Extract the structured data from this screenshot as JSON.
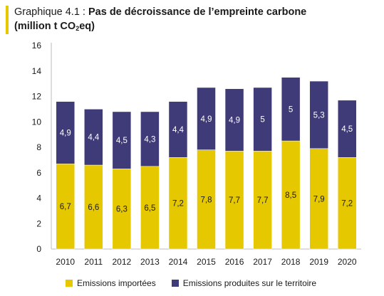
{
  "header": {
    "prefix": "Graphique 4.1 : ",
    "title": "Pas de décroissance de l’empreinte carbone",
    "unit_pre": "(million t CO",
    "unit_sub": "2",
    "unit_post": "eq)"
  },
  "colors": {
    "imports": "#e6c800",
    "territory": "#3f3a78",
    "accent": "#e6c800"
  },
  "chart_data": {
    "type": "bar",
    "stacked": true,
    "categories": [
      "2010",
      "2011",
      "2012",
      "2013",
      "2014",
      "2015",
      "2016",
      "2017",
      "2018",
      "2019",
      "2020"
    ],
    "series": [
      {
        "name": "Emissions importées",
        "values": [
          6.7,
          6.6,
          6.3,
          6.5,
          7.2,
          7.8,
          7.7,
          7.7,
          8.5,
          7.9,
          7.2
        ],
        "labels": [
          "6,7",
          "6,6",
          "6,3",
          "6,5",
          "7,2",
          "7,8",
          "7,7",
          "7,7",
          "8,5",
          "7,9",
          "7,2"
        ]
      },
      {
        "name": "Emissions produites sur le territoire",
        "values": [
          4.9,
          4.4,
          4.5,
          4.3,
          4.4,
          4.9,
          4.9,
          5,
          5,
          5.3,
          4.5
        ],
        "labels": [
          "4,9",
          "4,4",
          "4,5",
          "4,3",
          "4,4",
          "4,9",
          "4,9",
          "5",
          "5",
          "5,3",
          "4,5"
        ]
      }
    ],
    "ylim": [
      0,
      16
    ],
    "yticks": [
      "0",
      "2",
      "4",
      "6",
      "8",
      "10",
      "12",
      "14",
      "16"
    ],
    "grid": false,
    "legend": "bottom"
  }
}
